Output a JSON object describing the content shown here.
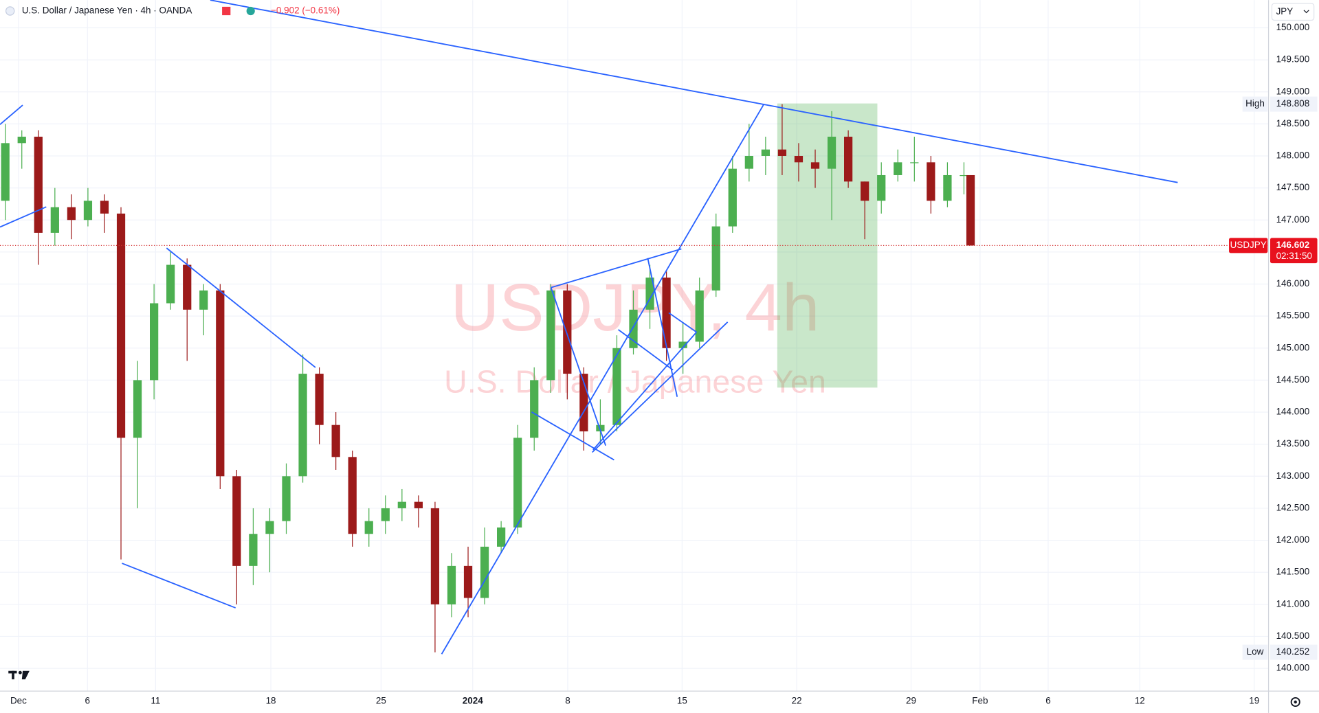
{
  "chart_data": {
    "type": "candlestick",
    "title": "U.S. Dollar / Japanese Yen · 4h · OANDA",
    "change": "−0.902 (−0.61%)",
    "watermark": "USDJPY, 4h",
    "watermark_subtitle": "U.S. Dollar / Japanese Yen",
    "currency": "JPY",
    "up_color": "#4caf50",
    "down_color": "#9c1a1a",
    "grid": true,
    "x": [
      -0.6,
      0.15,
      0.9,
      1.65,
      2.4,
      3.15,
      3.9,
      4.65,
      5.4,
      6.15,
      6.9,
      7.65,
      8.4,
      9.15,
      9.9,
      10.65,
      11.4,
      12.15,
      12.9,
      13.65,
      14.4,
      15.15,
      15.9,
      16.65,
      17.4,
      18.15,
      18.9,
      19.65,
      20.4,
      21.15,
      21.9,
      22.65,
      23.4,
      24.15,
      24.9,
      25.65,
      26.4,
      27.15,
      27.9,
      28.65,
      29.4,
      30.15,
      30.9,
      31.65,
      32.4,
      33.15,
      33.9,
      34.65,
      35.4,
      36.15,
      36.9,
      37.65,
      38.4,
      39.15,
      39.9,
      40.65,
      41.4,
      42.15,
      42.9,
      43.2
    ],
    "open": [
      147.3,
      148.2,
      148.3,
      146.8,
      147.2,
      147.0,
      147.3,
      147.1,
      143.6,
      144.5,
      145.7,
      146.3,
      145.6,
      145.9,
      143.0,
      141.6,
      142.1,
      142.3,
      143.0,
      144.6,
      143.8,
      143.3,
      142.1,
      142.3,
      142.5,
      142.6,
      142.5,
      141.0,
      141.6,
      141.1,
      141.9,
      142.2,
      143.6,
      144.5,
      145.9,
      144.6,
      143.7,
      143.8,
      145.0,
      145.6,
      146.1,
      145.0,
      145.1,
      145.9,
      146.9,
      147.8,
      148.0,
      148.1,
      148.0,
      147.9,
      147.8,
      148.3,
      147.6,
      147.3,
      147.7,
      147.9,
      147.9,
      147.3,
      147.7,
      147.7
    ],
    "high": [
      148.5,
      148.4,
      148.4,
      147.5,
      147.4,
      147.5,
      147.4,
      147.2,
      144.8,
      146.0,
      146.5,
      146.4,
      146.0,
      146.0,
      143.1,
      142.5,
      142.5,
      143.2,
      144.9,
      144.7,
      144.0,
      143.4,
      142.5,
      142.7,
      142.8,
      142.7,
      142.6,
      141.8,
      141.9,
      142.2,
      142.3,
      143.8,
      144.7,
      146.0,
      146.0,
      144.7,
      144.2,
      145.2,
      145.9,
      146.3,
      146.2,
      145.4,
      146.1,
      147.1,
      148.0,
      148.5,
      148.3,
      148.808,
      148.2,
      148.1,
      148.7,
      148.4,
      147.6,
      147.9,
      148.1,
      148.3,
      148.0,
      147.9,
      147.9,
      147.7
    ],
    "low": [
      147.0,
      147.8,
      146.3,
      146.6,
      146.7,
      146.9,
      146.8,
      141.7,
      142.5,
      144.2,
      145.6,
      144.8,
      145.2,
      142.8,
      141.0,
      141.3,
      141.5,
      142.1,
      142.9,
      143.5,
      143.1,
      141.9,
      141.9,
      142.1,
      142.3,
      142.2,
      140.252,
      140.8,
      140.8,
      141.0,
      141.8,
      142.1,
      143.4,
      144.3,
      144.2,
      143.4,
      143.5,
      143.7,
      144.9,
      145.3,
      144.8,
      144.6,
      145.0,
      145.8,
      146.8,
      147.6,
      147.7,
      147.7,
      147.6,
      147.5,
      147.0,
      147.5,
      146.7,
      147.1,
      147.6,
      147.6,
      147.1,
      147.2,
      147.4,
      146.6
    ],
    "close": [
      148.2,
      148.3,
      146.8,
      147.2,
      147.0,
      147.3,
      147.1,
      143.6,
      144.5,
      145.7,
      146.3,
      145.6,
      145.9,
      143.0,
      141.6,
      142.1,
      142.3,
      143.0,
      144.6,
      143.8,
      143.3,
      142.1,
      142.3,
      142.5,
      142.6,
      142.5,
      141.0,
      141.6,
      141.1,
      141.9,
      142.2,
      143.6,
      144.5,
      145.9,
      144.6,
      143.7,
      143.8,
      145.0,
      145.6,
      146.1,
      145.0,
      145.1,
      145.9,
      146.9,
      147.8,
      148.0,
      148.1,
      148.0,
      147.9,
      147.8,
      148.3,
      147.6,
      147.3,
      147.7,
      147.9,
      147.9,
      147.3,
      147.7,
      147.7,
      146.602
    ],
    "xlim": [
      -0.84,
      56.72
    ],
    "xticks": [
      {
        "value": 0,
        "label": "Dec"
      },
      {
        "value": 3.13,
        "label": "6"
      },
      {
        "value": 6.22,
        "label": "11"
      },
      {
        "value": 11.45,
        "label": "18"
      },
      {
        "value": 16.45,
        "label": "25"
      },
      {
        "value": 20.61,
        "label": "2024"
      },
      {
        "value": 24.92,
        "label": "8"
      },
      {
        "value": 30.11,
        "label": "15"
      },
      {
        "value": 35.31,
        "label": "22"
      },
      {
        "value": 40.5,
        "label": "29"
      },
      {
        "value": 43.63,
        "label": "Feb"
      },
      {
        "value": 46.72,
        "label": "6"
      },
      {
        "value": 50.88,
        "label": "12"
      },
      {
        "value": 56.07,
        "label": "19"
      }
    ],
    "ylim": [
      139.646,
      150.433
    ],
    "yticks": [
      {
        "value": 140,
        "label": "140.000"
      },
      {
        "value": 140.5,
        "label": "140.500"
      },
      {
        "value": 141,
        "label": "141.000"
      },
      {
        "value": 141.5,
        "label": "141.500"
      },
      {
        "value": 142,
        "label": "142.000"
      },
      {
        "value": 142.5,
        "label": "142.500"
      },
      {
        "value": 143,
        "label": "143.000"
      },
      {
        "value": 143.5,
        "label": "143.500"
      },
      {
        "value": 144,
        "label": "144.000"
      },
      {
        "value": 144.5,
        "label": "144.500"
      },
      {
        "value": 145,
        "label": "145.000"
      },
      {
        "value": 145.5,
        "label": "145.500"
      },
      {
        "value": 146,
        "label": "146.000"
      },
      {
        "value": 146.5,
        "label": "146.500"
      },
      {
        "value": 147,
        "label": "147.000"
      },
      {
        "value": 147.5,
        "label": "147.500"
      },
      {
        "value": 148,
        "label": "148.000"
      },
      {
        "value": 148.5,
        "label": "148.500"
      },
      {
        "value": 149,
        "label": "149.000"
      },
      {
        "value": 149.5,
        "label": "149.500"
      },
      {
        "value": 150,
        "label": "150.000"
      }
    ],
    "high_marker": {
      "label": "High",
      "value": 148.808
    },
    "low_marker": {
      "label": "Low",
      "value": 140.252
    },
    "last_price": {
      "label": "USDJPY",
      "value": 146.602,
      "countdown": "02:31:50"
    }
  }
}
